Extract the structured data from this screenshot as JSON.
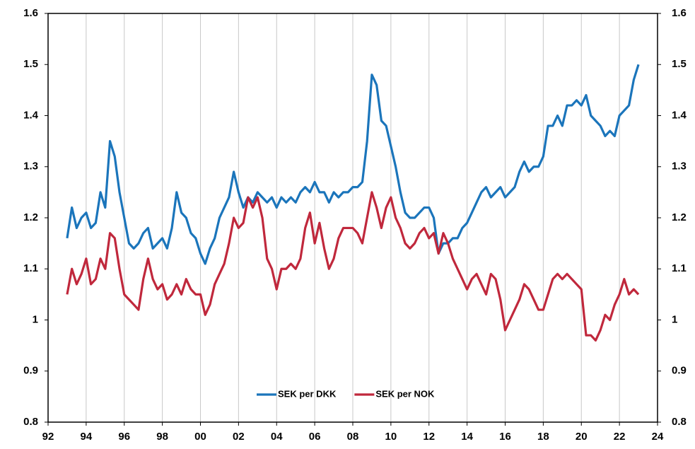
{
  "chart_data": {
    "type": "line",
    "x": [
      1993,
      1993.25,
      1993.5,
      1993.75,
      1994,
      1994.25,
      1994.5,
      1994.75,
      1995,
      1995.25,
      1995.5,
      1995.75,
      1996,
      1996.25,
      1996.5,
      1996.75,
      1997,
      1997.25,
      1997.5,
      1997.75,
      1998,
      1998.25,
      1998.5,
      1998.75,
      1999,
      1999.25,
      1999.5,
      1999.75,
      2000,
      2000.25,
      2000.5,
      2000.75,
      2001,
      2001.25,
      2001.5,
      2001.75,
      2002,
      2002.25,
      2002.5,
      2002.75,
      2003,
      2003.25,
      2003.5,
      2003.75,
      2004,
      2004.25,
      2004.5,
      2004.75,
      2005,
      2005.25,
      2005.5,
      2005.75,
      2006,
      2006.25,
      2006.5,
      2006.75,
      2007,
      2007.25,
      2007.5,
      2007.75,
      2008,
      2008.25,
      2008.5,
      2008.75,
      2009,
      2009.25,
      2009.5,
      2009.75,
      2010,
      2010.25,
      2010.5,
      2010.75,
      2011,
      2011.25,
      2011.5,
      2011.75,
      2012,
      2012.25,
      2012.5,
      2012.75,
      2013,
      2013.25,
      2013.5,
      2013.75,
      2014,
      2014.25,
      2014.5,
      2014.75,
      2015,
      2015.25,
      2015.5,
      2015.75,
      2016,
      2016.25,
      2016.5,
      2016.75,
      2017,
      2017.25,
      2017.5,
      2017.75,
      2018,
      2018.25,
      2018.5,
      2018.75,
      2019,
      2019.25,
      2019.5,
      2019.75,
      2020,
      2020.25,
      2020.5,
      2020.75,
      2021,
      2021.25,
      2021.5,
      2021.75,
      2022,
      2022.25,
      2022.5,
      2022.75,
      2023
    ],
    "series": [
      {
        "name": "SEK per DKK",
        "color": "#1b75bb",
        "values": [
          1.16,
          1.22,
          1.18,
          1.2,
          1.21,
          1.18,
          1.19,
          1.25,
          1.22,
          1.35,
          1.32,
          1.25,
          1.2,
          1.15,
          1.14,
          1.15,
          1.17,
          1.18,
          1.14,
          1.15,
          1.16,
          1.14,
          1.18,
          1.25,
          1.21,
          1.2,
          1.17,
          1.16,
          1.13,
          1.11,
          1.14,
          1.16,
          1.2,
          1.22,
          1.24,
          1.29,
          1.25,
          1.22,
          1.24,
          1.23,
          1.25,
          1.24,
          1.23,
          1.24,
          1.22,
          1.24,
          1.23,
          1.24,
          1.23,
          1.25,
          1.26,
          1.25,
          1.27,
          1.25,
          1.25,
          1.23,
          1.25,
          1.24,
          1.25,
          1.25,
          1.26,
          1.26,
          1.27,
          1.35,
          1.48,
          1.46,
          1.39,
          1.38,
          1.34,
          1.3,
          1.25,
          1.21,
          1.2,
          1.2,
          1.21,
          1.22,
          1.22,
          1.2,
          1.13,
          1.15,
          1.15,
          1.16,
          1.16,
          1.18,
          1.19,
          1.21,
          1.23,
          1.25,
          1.26,
          1.24,
          1.25,
          1.26,
          1.24,
          1.25,
          1.26,
          1.29,
          1.31,
          1.29,
          1.3,
          1.3,
          1.32,
          1.38,
          1.38,
          1.4,
          1.38,
          1.42,
          1.42,
          1.43,
          1.42,
          1.44,
          1.4,
          1.39,
          1.38,
          1.36,
          1.37,
          1.36,
          1.4,
          1.41,
          1.42,
          1.47,
          1.5
        ]
      },
      {
        "name": "SEK per NOK",
        "color": "#c0283c",
        "values": [
          1.05,
          1.1,
          1.07,
          1.09,
          1.12,
          1.07,
          1.08,
          1.12,
          1.1,
          1.17,
          1.16,
          1.1,
          1.05,
          1.04,
          1.03,
          1.02,
          1.08,
          1.12,
          1.08,
          1.06,
          1.07,
          1.04,
          1.05,
          1.07,
          1.05,
          1.08,
          1.06,
          1.05,
          1.05,
          1.01,
          1.03,
          1.07,
          1.09,
          1.11,
          1.15,
          1.2,
          1.18,
          1.19,
          1.24,
          1.22,
          1.24,
          1.2,
          1.12,
          1.1,
          1.06,
          1.1,
          1.1,
          1.11,
          1.1,
          1.12,
          1.18,
          1.21,
          1.15,
          1.19,
          1.14,
          1.1,
          1.12,
          1.16,
          1.18,
          1.18,
          1.18,
          1.17,
          1.15,
          1.2,
          1.25,
          1.22,
          1.18,
          1.22,
          1.24,
          1.2,
          1.18,
          1.15,
          1.14,
          1.15,
          1.17,
          1.18,
          1.16,
          1.17,
          1.13,
          1.17,
          1.15,
          1.12,
          1.1,
          1.08,
          1.06,
          1.08,
          1.09,
          1.07,
          1.05,
          1.09,
          1.08,
          1.04,
          0.98,
          1,
          1.02,
          1.04,
          1.07,
          1.06,
          1.04,
          1.02,
          1.02,
          1.05,
          1.08,
          1.09,
          1.08,
          1.09,
          1.08,
          1.07,
          1.06,
          0.97,
          0.97,
          0.96,
          0.98,
          1.01,
          1,
          1.03,
          1.05,
          1.08,
          1.05,
          1.06,
          1.05
        ]
      }
    ],
    "xlim": [
      1992,
      2024
    ],
    "xticks": [
      {
        "value": 1992,
        "label": "92"
      },
      {
        "value": 1994,
        "label": "94"
      },
      {
        "value": 1996,
        "label": "96"
      },
      {
        "value": 1998,
        "label": "98"
      },
      {
        "value": 2000,
        "label": "00"
      },
      {
        "value": 2002,
        "label": "02"
      },
      {
        "value": 2004,
        "label": "04"
      },
      {
        "value": 2006,
        "label": "06"
      },
      {
        "value": 2008,
        "label": "08"
      },
      {
        "value": 2010,
        "label": "10"
      },
      {
        "value": 2012,
        "label": "12"
      },
      {
        "value": 2014,
        "label": "14"
      },
      {
        "value": 2016,
        "label": "16"
      },
      {
        "value": 2018,
        "label": "18"
      },
      {
        "value": 2020,
        "label": "20"
      },
      {
        "value": 2022,
        "label": "22"
      },
      {
        "value": 2024,
        "label": "24"
      }
    ],
    "ylim": [
      0.8,
      1.6
    ],
    "yticks": [
      0.8,
      0.9,
      1,
      1.1,
      1.2,
      1.3,
      1.4,
      1.5,
      1.6
    ],
    "y2lim": [
      0.8,
      1.6
    ],
    "y2ticks": [
      0.8,
      0.9,
      1,
      1.1,
      1.2,
      1.3,
      1.4,
      1.5,
      1.6
    ],
    "grid": "x",
    "legend": "bottom"
  }
}
